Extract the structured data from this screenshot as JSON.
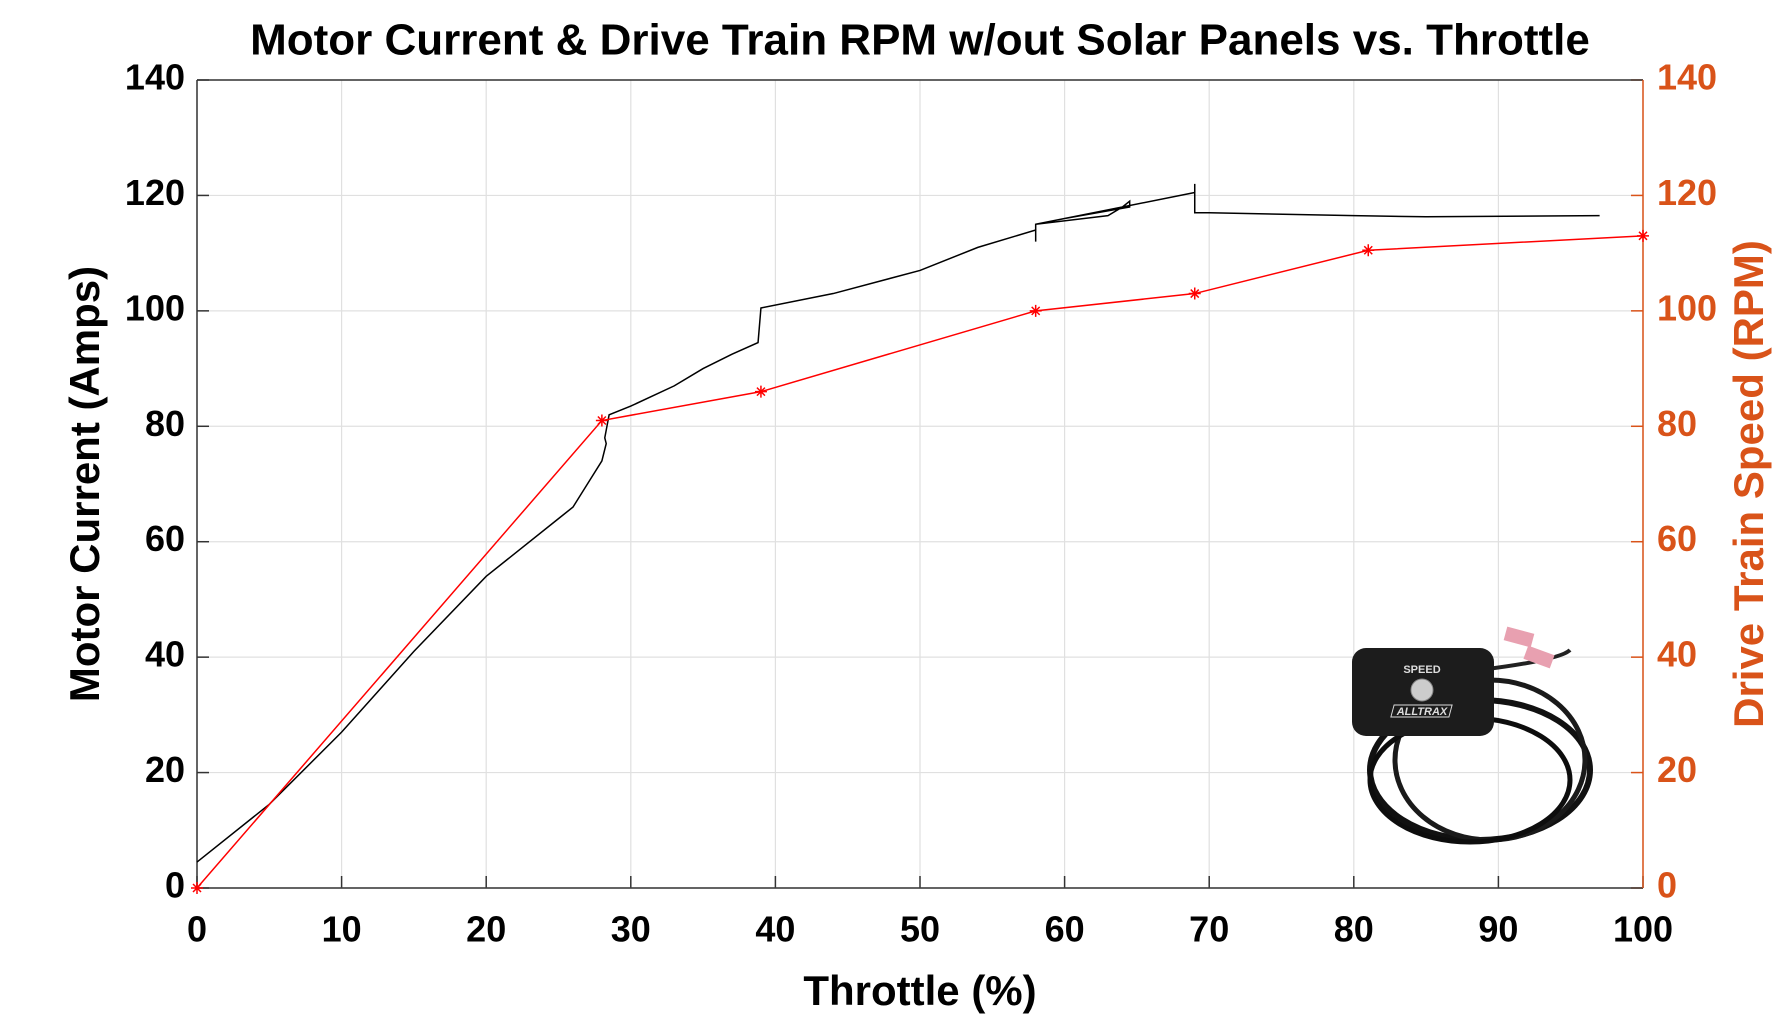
{
  "chart_data": {
    "type": "line",
    "title": "Motor Current & Drive Train RPM w/out Solar Panels vs. Throttle",
    "x_label": "Throttle (%)",
    "y_label": "Motor Current (Amps)",
    "y2_label": "Drive Train Speed (RPM)",
    "xlim": [
      0,
      100
    ],
    "xticks": [
      0,
      10,
      20,
      30,
      40,
      50,
      60,
      70,
      80,
      90,
      100
    ],
    "ylim": [
      0,
      140
    ],
    "yticks": [
      0,
      20,
      40,
      60,
      80,
      100,
      120,
      140
    ],
    "y2lim": [
      0,
      140
    ],
    "y2ticks": [
      0,
      20,
      40,
      60,
      80,
      100,
      120,
      140
    ],
    "y2_color": "#d95319",
    "grid": true,
    "series": [
      {
        "color": "#000000",
        "axis": "y",
        "x": [
          0,
          5,
          10,
          15,
          20,
          25,
          26,
          27,
          28,
          28.3,
          28.2,
          28.5,
          30,
          33,
          35,
          37,
          38.8,
          39,
          44,
          50,
          54,
          58,
          58,
          58,
          63,
          64,
          64.5,
          64.5,
          60,
          58,
          63,
          69,
          69,
          69,
          70,
          80,
          85,
          97
        ],
        "values": [
          4.5,
          14.5,
          27,
          41,
          54,
          64,
          66,
          70,
          74,
          77,
          78,
          82,
          83.5,
          87,
          90,
          92.5,
          94.5,
          100.5,
          103,
          107,
          111,
          114,
          112,
          115,
          116.5,
          118,
          119,
          118,
          116,
          115,
          117.5,
          120.5,
          122,
          117,
          117,
          116.5,
          116.3,
          116.5
        ]
      },
      {
        "color": "#ff0000",
        "axis": "y2",
        "marker": "asterisk",
        "x": [
          0,
          28,
          39,
          58,
          69,
          81,
          100
        ],
        "values": [
          0,
          81,
          86,
          100,
          103,
          110.5,
          113
        ]
      }
    ],
    "inset_labels": [
      "SPEED",
      "ALLTRAX"
    ]
  }
}
